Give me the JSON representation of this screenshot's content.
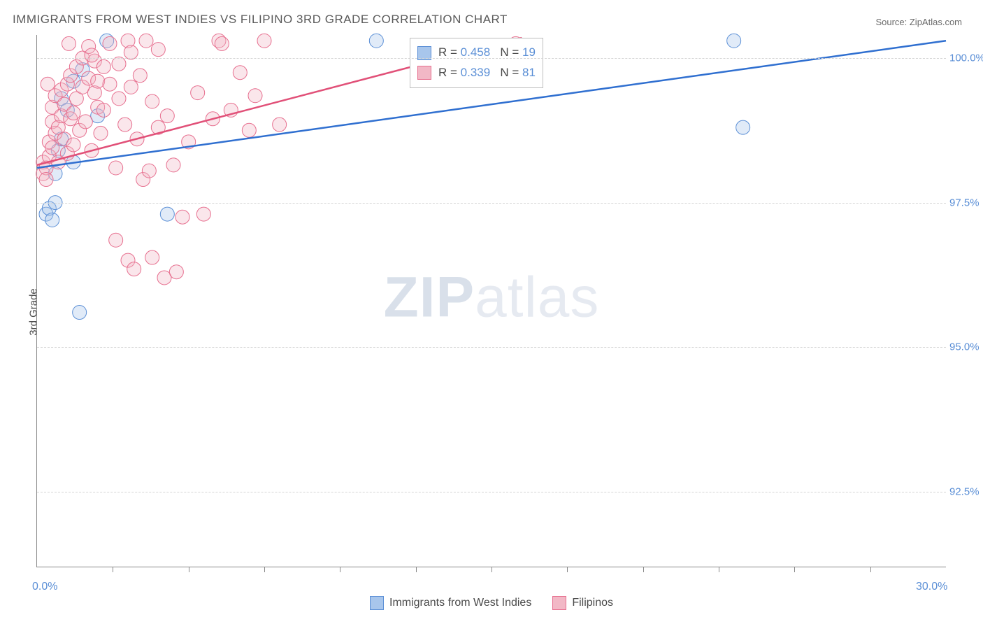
{
  "title": "IMMIGRANTS FROM WEST INDIES VS FILIPINO 3RD GRADE CORRELATION CHART",
  "source": "Source: ZipAtlas.com",
  "ylabel": "3rd Grade",
  "watermark_bold": "ZIP",
  "watermark_light": "atlas",
  "chart": {
    "type": "scatter",
    "xlim": [
      0,
      30
    ],
    "ylim": [
      91.2,
      100.4
    ],
    "x_axis_labels": {
      "left": "0.0%",
      "right": "30.0%"
    },
    "x_tick_positions": [
      2.5,
      5,
      7.5,
      10,
      12.5,
      15,
      17.5,
      20,
      22.5,
      25,
      27.5
    ],
    "y_gridlines": [
      92.5,
      95.0,
      97.5,
      100.0
    ],
    "y_tick_labels": [
      "92.5%",
      "95.0%",
      "97.5%",
      "100.0%"
    ],
    "background_color": "#ffffff",
    "grid_color": "#d5d5d5",
    "axis_color": "#888888",
    "label_color": "#5b8fd6",
    "title_color": "#5a5a5a",
    "marker_radius": 10,
    "marker_opacity": 0.35,
    "trend_line_width": 2.5,
    "series": [
      {
        "name": "Immigrants from West Indies",
        "fill_color": "#a8c6ec",
        "stroke_color": "#5b8fd6",
        "line_color": "#2f6fd0",
        "R": "0.458",
        "N": "19",
        "trend_line": {
          "x1": 0,
          "y1": 98.1,
          "x2": 30,
          "y2": 100.3
        },
        "points": [
          [
            0.3,
            97.3
          ],
          [
            0.4,
            97.4
          ],
          [
            0.5,
            97.2
          ],
          [
            0.6,
            97.5
          ],
          [
            0.7,
            98.4
          ],
          [
            0.8,
            98.6
          ],
          [
            0.8,
            99.3
          ],
          [
            1.0,
            99.1
          ],
          [
            1.2,
            99.6
          ],
          [
            1.5,
            99.8
          ],
          [
            2.0,
            99.0
          ],
          [
            2.3,
            100.3
          ],
          [
            4.3,
            97.3
          ],
          [
            1.4,
            95.6
          ],
          [
            11.2,
            100.3
          ],
          [
            23.0,
            100.3
          ],
          [
            23.3,
            98.8
          ],
          [
            1.2,
            98.2
          ],
          [
            0.6,
            98.0
          ]
        ]
      },
      {
        "name": "Filipinos",
        "fill_color": "#f2b8c6",
        "stroke_color": "#e76f8f",
        "line_color": "#e15078",
        "R": "0.339",
        "N": "81",
        "trend_line": {
          "x1": 0,
          "y1": 98.15,
          "x2": 16.0,
          "y2": 100.35
        },
        "points": [
          [
            0.2,
            98.0
          ],
          [
            0.2,
            98.2
          ],
          [
            0.3,
            98.1
          ],
          [
            0.3,
            97.9
          ],
          [
            0.4,
            98.3
          ],
          [
            0.4,
            98.55
          ],
          [
            0.5,
            98.45
          ],
          [
            0.5,
            98.9
          ],
          [
            0.5,
            99.15
          ],
          [
            0.6,
            98.7
          ],
          [
            0.6,
            99.35
          ],
          [
            0.7,
            98.2
          ],
          [
            0.7,
            98.8
          ],
          [
            0.8,
            99.0
          ],
          [
            0.8,
            99.45
          ],
          [
            0.9,
            98.6
          ],
          [
            0.9,
            99.2
          ],
          [
            1.0,
            98.35
          ],
          [
            1.0,
            99.55
          ],
          [
            1.1,
            99.7
          ],
          [
            1.1,
            98.95
          ],
          [
            1.2,
            98.5
          ],
          [
            1.2,
            99.05
          ],
          [
            1.3,
            99.3
          ],
          [
            1.3,
            99.85
          ],
          [
            1.4,
            98.75
          ],
          [
            1.5,
            99.5
          ],
          [
            1.5,
            100.0
          ],
          [
            1.6,
            98.9
          ],
          [
            1.7,
            99.65
          ],
          [
            1.7,
            100.2
          ],
          [
            1.8,
            98.4
          ],
          [
            1.9,
            99.4
          ],
          [
            1.9,
            99.95
          ],
          [
            2.0,
            99.15
          ],
          [
            2.0,
            99.6
          ],
          [
            2.1,
            98.7
          ],
          [
            2.2,
            99.85
          ],
          [
            2.2,
            99.1
          ],
          [
            2.4,
            99.55
          ],
          [
            2.4,
            100.25
          ],
          [
            2.6,
            98.1
          ],
          [
            2.7,
            99.3
          ],
          [
            2.7,
            99.9
          ],
          [
            2.9,
            98.85
          ],
          [
            3.0,
            100.3
          ],
          [
            3.1,
            99.5
          ],
          [
            3.1,
            100.1
          ],
          [
            3.3,
            98.6
          ],
          [
            3.4,
            99.7
          ],
          [
            3.5,
            97.9
          ],
          [
            3.6,
            100.3
          ],
          [
            3.7,
            98.05
          ],
          [
            3.8,
            99.25
          ],
          [
            4.0,
            98.8
          ],
          [
            4.3,
            99.0
          ],
          [
            4.5,
            98.15
          ],
          [
            4.8,
            97.25
          ],
          [
            5.0,
            98.55
          ],
          [
            5.3,
            99.4
          ],
          [
            5.5,
            97.3
          ],
          [
            5.8,
            98.95
          ],
          [
            6.0,
            100.3
          ],
          [
            6.1,
            100.25
          ],
          [
            6.4,
            99.1
          ],
          [
            6.7,
            99.75
          ],
          [
            7.0,
            98.75
          ],
          [
            7.2,
            99.35
          ],
          [
            7.5,
            100.3
          ],
          [
            8.0,
            98.85
          ],
          [
            2.6,
            96.85
          ],
          [
            3.0,
            96.5
          ],
          [
            3.2,
            96.35
          ],
          [
            3.8,
            96.55
          ],
          [
            4.2,
            96.2
          ],
          [
            4.6,
            96.3
          ],
          [
            15.8,
            100.25
          ],
          [
            1.8,
            100.05
          ],
          [
            0.35,
            99.55
          ],
          [
            4.0,
            100.15
          ],
          [
            1.05,
            100.25
          ]
        ]
      }
    ],
    "legend_bottom": [
      {
        "label": "Immigrants from West Indies",
        "fill": "#a8c6ec",
        "border": "#5b8fd6"
      },
      {
        "label": "Filipinos",
        "fill": "#f2b8c6",
        "border": "#e76f8f"
      }
    ]
  }
}
